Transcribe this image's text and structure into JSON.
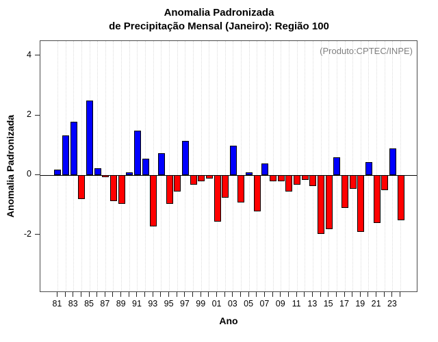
{
  "header": {
    "title_line1": "Anomalia Padronizada",
    "title_line2": "de Precipitação Mensal (Janeiro): Região 100"
  },
  "chart_data": {
    "type": "bar",
    "title": "Anomalia Padronizada de Precipitação Mensal (Janeiro): Região 100",
    "xlabel": "Ano",
    "ylabel": "Anomalia Padronizada",
    "annotation": "(Produto:CPTEC/INPE)",
    "x": [
      1981,
      1982,
      1983,
      1984,
      1985,
      1986,
      1987,
      1988,
      1989,
      1990,
      1991,
      1992,
      1993,
      1994,
      1995,
      1996,
      1997,
      1998,
      1999,
      2000,
      2001,
      2002,
      2003,
      2004,
      2005,
      2006,
      2007,
      2008,
      2009,
      2010,
      2011,
      2012,
      2013,
      2014,
      2015,
      2016,
      2017,
      2018,
      2019,
      2020,
      2021,
      2022,
      2023,
      2024
    ],
    "values": [
      0.2,
      1.35,
      1.8,
      -0.8,
      2.5,
      0.25,
      -0.05,
      -0.85,
      -0.95,
      0.1,
      1.5,
      0.55,
      -1.7,
      0.75,
      -0.95,
      -0.55,
      1.15,
      -0.3,
      -0.2,
      -0.1,
      -1.55,
      -0.75,
      1.0,
      -0.9,
      0.1,
      -1.2,
      0.4,
      -0.2,
      -0.2,
      -0.55,
      -0.3,
      -0.15,
      -0.35,
      -1.95,
      -1.8,
      0.6,
      -1.1,
      -0.45,
      -1.9,
      0.45,
      -1.6,
      -0.5,
      0.9,
      -1.5
    ],
    "xtick_labels": [
      "81",
      "83",
      "85",
      "87",
      "89",
      "91",
      "93",
      "95",
      "97",
      "99",
      "01",
      "03",
      "05",
      "07",
      "09",
      "11",
      "13",
      "15",
      "17",
      "19",
      "21",
      "23"
    ],
    "xtick_label_step": 2,
    "yticks": [
      4,
      2,
      0,
      -2
    ],
    "ytick_labels": [
      "4",
      "2",
      "0",
      "-2"
    ],
    "ylim": [
      -3.93,
      4.5
    ],
    "grid": "vertical-dotted-per-year",
    "legend": "none",
    "colors": {
      "positive": "#0000ff",
      "negative": "#ff0000",
      "bar_border": "#000000",
      "grid": "#dcdcdc",
      "annotation": "#7f7f7f",
      "axis_box": "#4a4a4a",
      "zero_line": "#000000",
      "background": "#ffffff"
    }
  }
}
